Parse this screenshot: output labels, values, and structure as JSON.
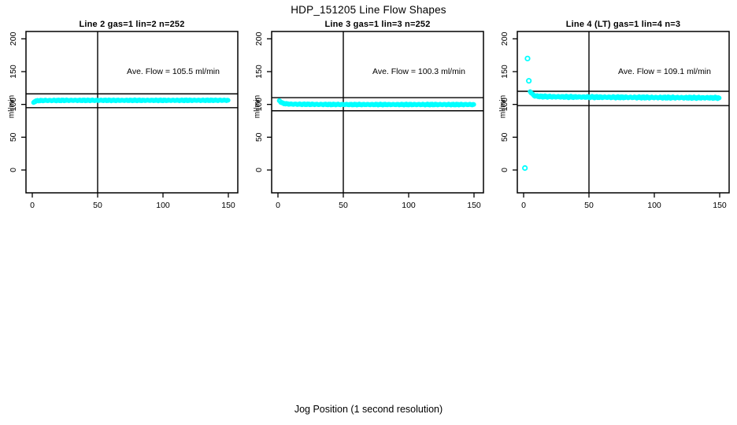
{
  "title": "HDP_151205  Line Flow Shapes",
  "xlabel": "Jog Position (1 second resolution)",
  "marker_color": "#00FFFF",
  "line_color": "#000000",
  "chart_data": [
    {
      "type": "scatter",
      "title": "Line 2 gas=1 lin=2 n=252",
      "ylabel": "ml/min",
      "annotation": "Ave. Flow =  105.5  ml/min",
      "ave_flow_ml_min": 105.5,
      "n": 252,
      "x_ticks": [
        0,
        50,
        100,
        150
      ],
      "y_ticks": [
        0,
        50,
        100,
        150,
        200
      ],
      "xlim": [
        0,
        155
      ],
      "ylim": [
        0,
        200
      ],
      "vline_x": 50,
      "ref_lines_y": [
        116.1,
        95.0
      ],
      "jitter": 0.7,
      "profile": [
        [
          1,
          103.2
        ],
        [
          2,
          104.6
        ],
        [
          3,
          105.3
        ],
        [
          5,
          105.8
        ],
        [
          10,
          106.0
        ],
        [
          30,
          106.2
        ],
        [
          60,
          106.2
        ],
        [
          100,
          106.2
        ],
        [
          150,
          106.3
        ]
      ],
      "outliers": []
    },
    {
      "type": "scatter",
      "title": "Line 3 gas=1 lin=3 n=252",
      "ylabel": "ml/min",
      "annotation": "Ave. Flow =  100.3  ml/min",
      "ave_flow_ml_min": 100.3,
      "n": 252,
      "x_ticks": [
        0,
        50,
        100,
        150
      ],
      "y_ticks": [
        0,
        50,
        100,
        150,
        200
      ],
      "xlim": [
        0,
        155
      ],
      "ylim": [
        0,
        200
      ],
      "vline_x": 50,
      "ref_lines_y": [
        110.3,
        90.3
      ],
      "jitter": 0.7,
      "profile": [
        [
          1,
          106.0
        ],
        [
          2,
          104.0
        ],
        [
          3,
          102.5
        ],
        [
          4,
          101.6
        ],
        [
          6,
          101.0
        ],
        [
          10,
          100.4
        ],
        [
          30,
          100.0
        ],
        [
          60,
          99.8
        ],
        [
          100,
          99.8
        ],
        [
          150,
          99.8
        ]
      ],
      "outliers": []
    },
    {
      "type": "scatter",
      "title": "Line 4 (LT) gas=1 lin=4 n=3",
      "ylabel": "ml/min",
      "annotation": "Ave. Flow =  109.1  ml/min",
      "ave_flow_ml_min": 109.1,
      "n": 3,
      "x_ticks": [
        0,
        50,
        100,
        150
      ],
      "y_ticks": [
        0,
        50,
        100,
        150,
        200
      ],
      "xlim": [
        0,
        155
      ],
      "ylim": [
        0,
        200
      ],
      "vline_x": 50,
      "ref_lines_y": [
        120.0,
        98.2
      ],
      "jitter": 1.1,
      "profile": [
        [
          5,
          120.0
        ],
        [
          6,
          117.0
        ],
        [
          7,
          115.0
        ],
        [
          8,
          113.5
        ],
        [
          10,
          112.5
        ],
        [
          15,
          112.0
        ],
        [
          30,
          111.5
        ],
        [
          60,
          111.0
        ],
        [
          100,
          110.5
        ],
        [
          150,
          110.0
        ]
      ],
      "outliers": [
        [
          1,
          3
        ],
        [
          3,
          170
        ],
        [
          4,
          136
        ]
      ]
    }
  ]
}
